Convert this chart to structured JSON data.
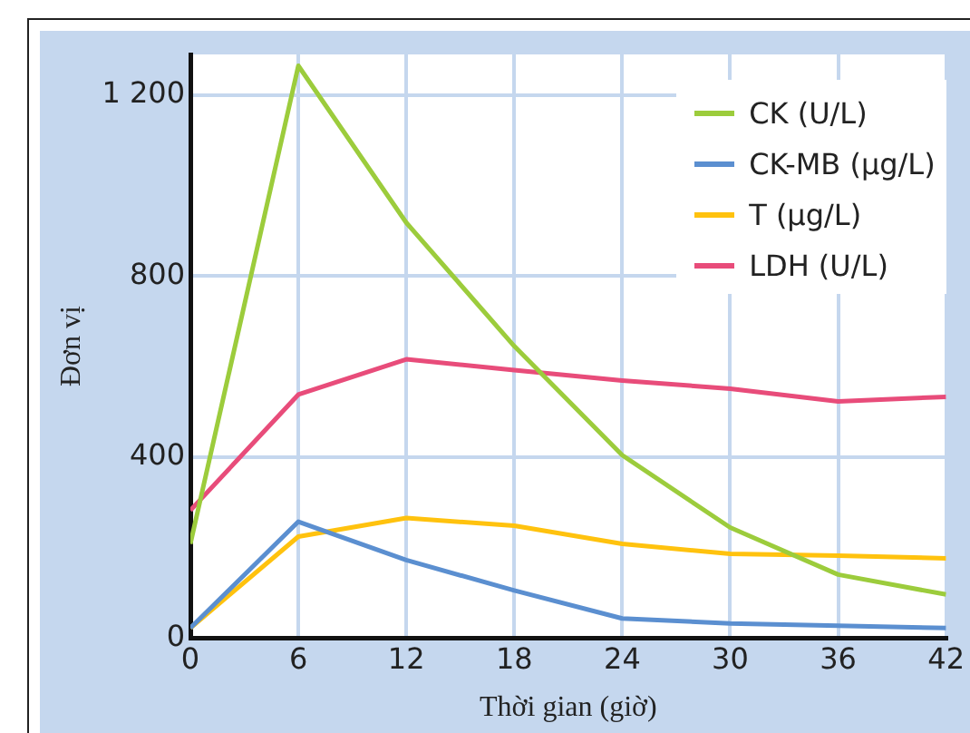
{
  "chart_data": {
    "type": "line",
    "xlabel": "Thời gian (giờ)",
    "ylabel": "Đơn vị",
    "x": [
      0,
      6,
      12,
      18,
      24,
      30,
      36,
      42
    ],
    "series": [
      {
        "name": "CK (U/L)",
        "color": "#9ccc3c",
        "values": [
          208,
          1265,
          918,
          645,
          404,
          244,
          140,
          96
        ]
      },
      {
        "name": "CK-MB (µg/L)",
        "color": "#5b8fd0",
        "values": [
          22,
          257,
          172,
          105,
          43,
          32,
          27,
          22
        ]
      },
      {
        "name": "T (µg/L)",
        "color": "#ffc20e",
        "values": [
          22,
          224,
          265,
          248,
          208,
          186,
          182,
          176
        ]
      },
      {
        "name": "LDH (U/L)",
        "color": "#e84c7a",
        "values": [
          282,
          538,
          616,
          592,
          569,
          551,
          523,
          533
        ]
      }
    ],
    "xlim": [
      0,
      42
    ],
    "xticks": [
      0,
      6,
      12,
      18,
      24,
      30,
      36,
      42
    ],
    "ylim": [
      0,
      1290
    ],
    "yticks": [
      0,
      400,
      800,
      {
        "value": 1200,
        "label": "1 200"
      }
    ],
    "grid": true,
    "legend": "top right",
    "marker": "none",
    "line_style": "solid"
  }
}
